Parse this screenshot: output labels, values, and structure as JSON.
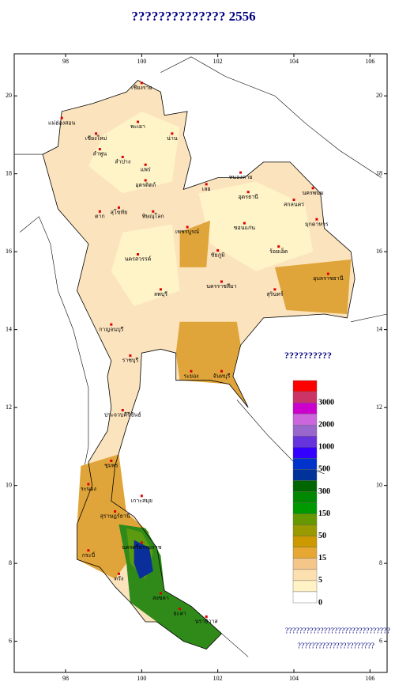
{
  "title": "?????????????? 2556",
  "map": {
    "xlim": [
      96.65,
      106.45
    ],
    "ylim": [
      5.2,
      21.08
    ],
    "xticks": [
      98,
      100,
      102,
      104,
      106
    ],
    "yticks": [
      6,
      8,
      10,
      12,
      14,
      16,
      18,
      20
    ],
    "provinces": [
      "เชียงราย",
      "แม่ฮ่องสอน",
      "เชียงใหม่",
      "ลำพูน",
      "พะเยา",
      "น่าน",
      "ลำปาง",
      "แพร่",
      "อุตรดิตถ์",
      "ตาก",
      "สุโขทัย",
      "พิษณุโลก",
      "เลย",
      "หนองคาย",
      "อุดรธานี",
      "สกลนคร",
      "นครพนม",
      "มุกดาหาร",
      "ขอนแก่น",
      "ร้อยเอ็ด",
      "ชัยภูมิ",
      "เพชรบูรณ์",
      "นครสวรรค์",
      "ลพบุรี",
      "นครราชสีมา",
      "สุรินทร์",
      "อุบลราชธานี",
      "กาญจนบุรี",
      "ราชบุรี",
      "ระยอง",
      "จันทบุรี",
      "ประจวบคีรีขันธ์",
      "ชุมพร",
      "ระนอง",
      "เกาะสมุย",
      "สุราษฎร์ธานี",
      "กระบี่",
      "นครศรีธรรมราช",
      "ตรัง",
      "สงขลา",
      "ยะลา",
      "นราธิวาส"
    ]
  },
  "legend": {
    "title": "??????????",
    "colors": [
      "#ff0000",
      "#cc3366",
      "#cc00cc",
      "#cc66dd",
      "#9966cc",
      "#6633dd",
      "#3300ff",
      "#0033cc",
      "#003399",
      "#006600",
      "#008800",
      "#009900",
      "#669900",
      "#999900",
      "#cc9900",
      "#e6a832",
      "#f5c68a",
      "#fde0b0",
      "#fff2c4",
      "#ffffff"
    ],
    "labels": [
      3000,
      2000,
      1000,
      500,
      300,
      150,
      50,
      15,
      5,
      0
    ]
  },
  "notes": [
    "??????????????????????????????",
    "??????????????????????"
  ]
}
